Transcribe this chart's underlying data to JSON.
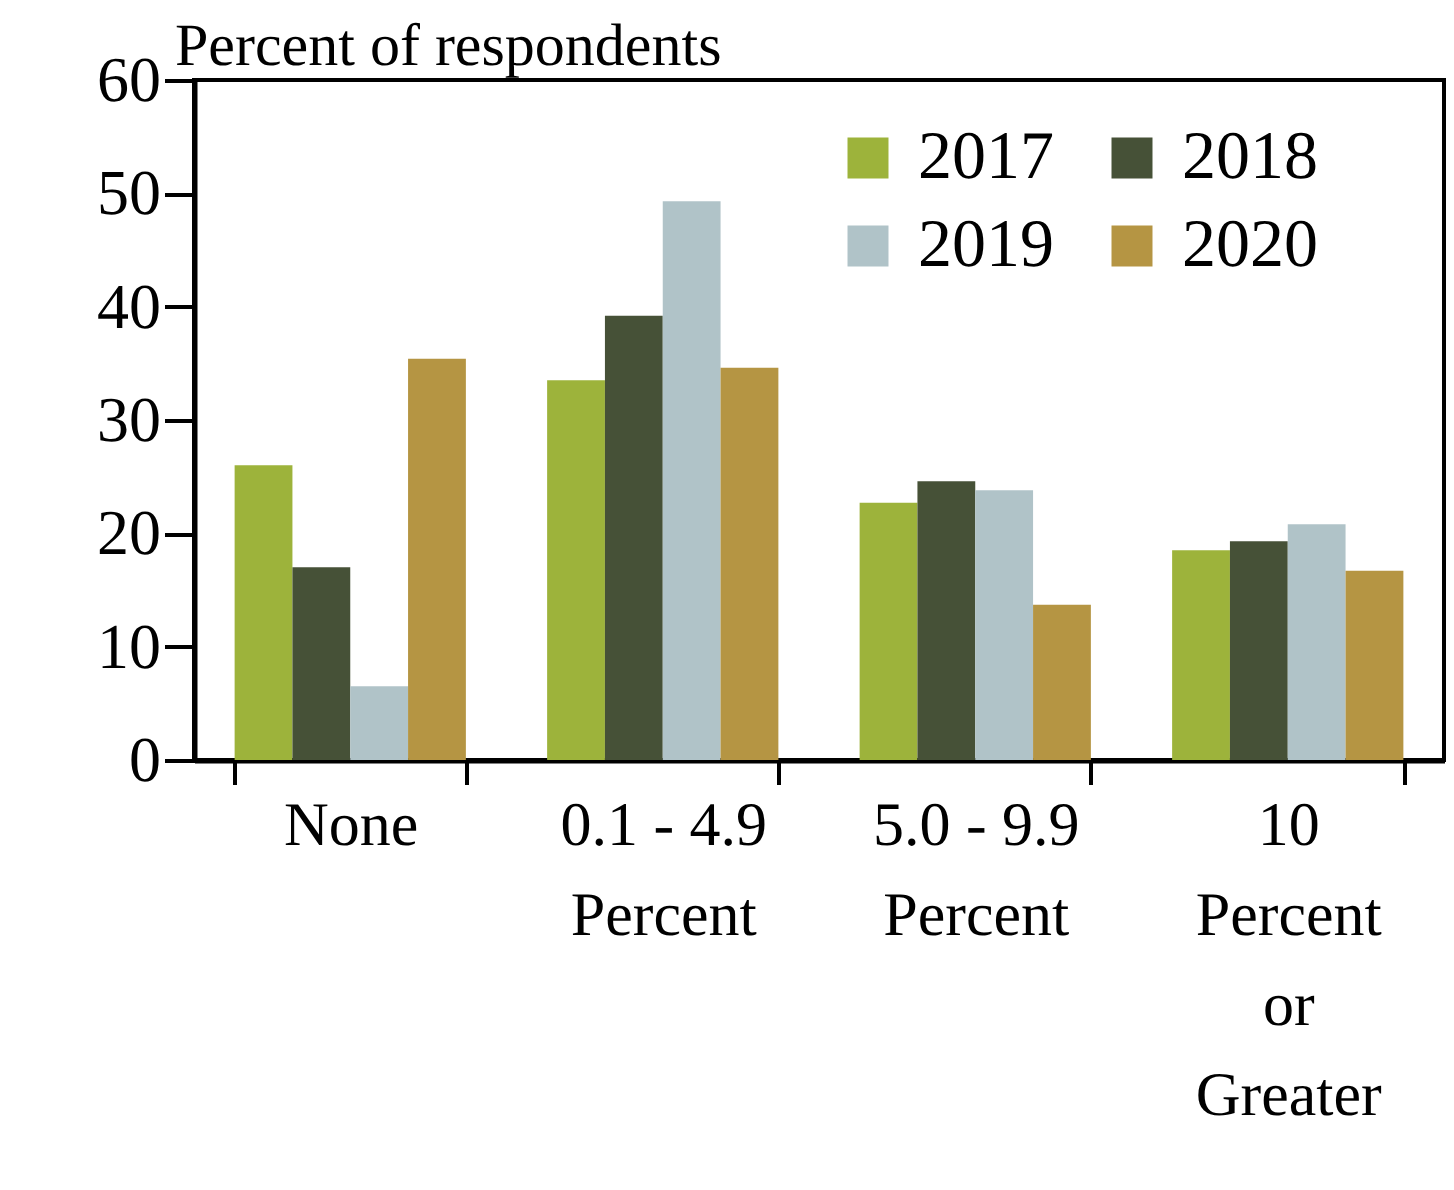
{
  "chart_data": {
    "type": "bar",
    "ylabel": "Percent of respondents",
    "categories": [
      "None",
      "0.1 - 4.9 Percent",
      "5.0 - 9.9 Percent",
      "10 Percent or Greater"
    ],
    "series": [
      {
        "name": "2017",
        "color": "#9db33b",
        "values": [
          26.0,
          33.5,
          22.7,
          18.5
        ]
      },
      {
        "name": "2018",
        "color": "#465137",
        "values": [
          17.0,
          39.2,
          24.6,
          19.3
        ]
      },
      {
        "name": "2019",
        "color": "#b0c3c8",
        "values": [
          6.5,
          49.3,
          23.8,
          20.8
        ]
      },
      {
        "name": "2020",
        "color": "#b59543",
        "values": [
          35.4,
          34.6,
          13.7,
          16.7
        ]
      }
    ],
    "ylim": [
      0,
      60
    ],
    "yticks": [
      0,
      10,
      20,
      30,
      40,
      50,
      60
    ],
    "grid": false,
    "legend": "top right"
  }
}
